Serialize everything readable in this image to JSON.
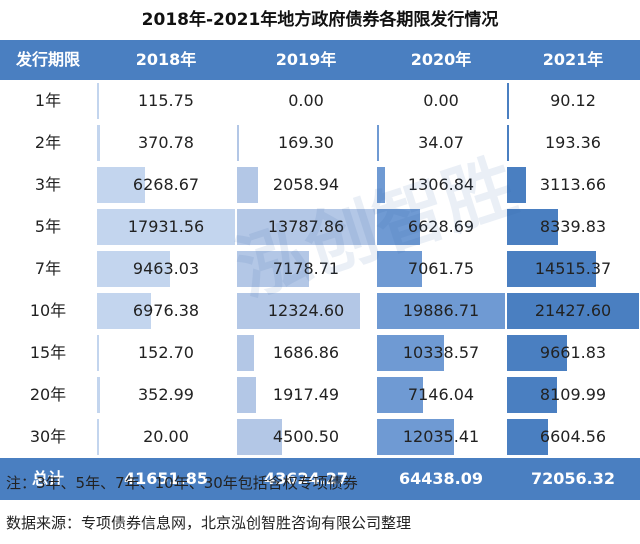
{
  "title": "2018年-2021年地方政府债券各期限发行情况",
  "chart_data": {
    "type": "table",
    "columns": [
      "发行期限",
      "2018年",
      "2019年",
      "2020年",
      "2021年"
    ],
    "rows": [
      {
        "term": "1年",
        "values": [
          115.75,
          0.0,
          0.0,
          90.12
        ],
        "labels": [
          "115.75",
          "0.00",
          "0.00",
          "90.12"
        ]
      },
      {
        "term": "2年",
        "values": [
          370.78,
          169.3,
          34.07,
          193.36
        ],
        "labels": [
          "370.78",
          "169.30",
          "34.07",
          "193.36"
        ]
      },
      {
        "term": "3年",
        "values": [
          6268.67,
          2058.94,
          1306.84,
          3113.66
        ],
        "labels": [
          "6268.67",
          "2058.94",
          "1306.84",
          "3113.66"
        ]
      },
      {
        "term": "5年",
        "values": [
          17931.56,
          13787.86,
          6628.69,
          8339.83
        ],
        "labels": [
          "17931.56",
          "13787.86",
          "6628.69",
          "8339.83"
        ]
      },
      {
        "term": "7年",
        "values": [
          9463.03,
          7178.71,
          7061.75,
          14515.37
        ],
        "labels": [
          "9463.03",
          "7178.71",
          "7061.75",
          "14515.37"
        ]
      },
      {
        "term": "10年",
        "values": [
          6976.38,
          12324.6,
          19886.71,
          21427.6
        ],
        "labels": [
          "6976.38",
          "12324.60",
          "19886.71",
          "21427.60"
        ]
      },
      {
        "term": "15年",
        "values": [
          152.7,
          1686.86,
          10338.57,
          9661.83
        ],
        "labels": [
          "152.70",
          "1686.86",
          "10338.57",
          "9661.83"
        ]
      },
      {
        "term": "20年",
        "values": [
          352.99,
          1917.49,
          7146.04,
          8109.99
        ],
        "labels": [
          "352.99",
          "1917.49",
          "7146.04",
          "8109.99"
        ]
      },
      {
        "term": "30年",
        "values": [
          20.0,
          4500.5,
          12035.41,
          6604.56
        ],
        "labels": [
          "20.00",
          "4500.50",
          "12035.41",
          "6604.56"
        ]
      }
    ],
    "total": {
      "label": "总计",
      "values": [
        "41651.85",
        "43624.27",
        "64438.09",
        "72056.32"
      ]
    },
    "bar_colors": [
      "#c3d5ee",
      "#b3c7e6",
      "#6f9ad3",
      "#4a7fc1"
    ]
  },
  "notes": {
    "note1": "注：3年、5年、7年、10年、30年包括含权专项债券",
    "note2": "数据来源：专项债券信息网，北京泓创智胜咨询有限公司整理"
  },
  "watermark": "泓创智胜",
  "colors": {
    "header_bg": "#4a7fc1",
    "header_text": "#ffffff"
  }
}
